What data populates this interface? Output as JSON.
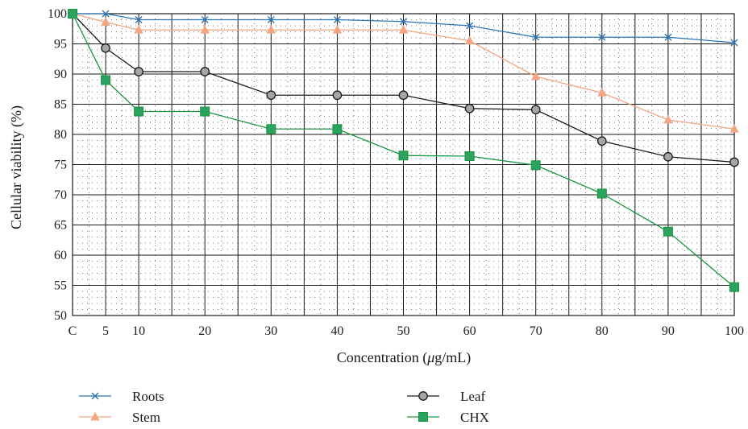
{
  "chart_data": {
    "type": "line",
    "xlabel_prefix": "Concentration (",
    "xlabel_mu": "μ",
    "xlabel_suffix": "g/mL)",
    "ylabel": "Cellular viability (%)",
    "ylim": [
      50,
      100
    ],
    "y_ticks": [
      "50",
      "55",
      "60",
      "65",
      "70",
      "75",
      "80",
      "85",
      "90",
      "95",
      "100"
    ],
    "x": [
      0,
      5,
      10,
      20,
      30,
      40,
      50,
      60,
      70,
      80,
      90,
      100
    ],
    "x_tick_labels": [
      "C",
      "5",
      "10",
      "20",
      "30",
      "40",
      "50",
      "60",
      "70",
      "80",
      "90",
      "100"
    ],
    "grid": "major solid lines with dotted minor grid",
    "legend_position": "bottom",
    "series": [
      {
        "name": "Roots",
        "marker": "x-cross",
        "color": "#2e75b6",
        "values": [
          100,
          100,
          99,
          99,
          99,
          99,
          98.7,
          98,
          96.1,
          96.1,
          96.1,
          95.2
        ]
      },
      {
        "name": "Stem",
        "marker": "triangle",
        "color": "#f4a582",
        "values": [
          100,
          98.6,
          97.3,
          97.3,
          97.3,
          97.3,
          97.3,
          95.5,
          89.6,
          86.9,
          82.4,
          80.9
        ]
      },
      {
        "name": "Leaf",
        "marker": "circle",
        "color": "#1a1a1a",
        "fill": "#a6a6a6",
        "values": [
          100,
          94.3,
          90.4,
          90.4,
          86.5,
          86.5,
          86.5,
          84.3,
          84.1,
          78.9,
          76.3,
          75.4
        ]
      },
      {
        "name": "CHX",
        "marker": "square",
        "color": "#1a9641",
        "fill": "#2ca25f",
        "values": [
          100,
          89,
          83.8,
          83.8,
          80.9,
          80.9,
          76.5,
          76.4,
          74.9,
          70.2,
          63.9,
          54.7
        ]
      }
    ]
  }
}
